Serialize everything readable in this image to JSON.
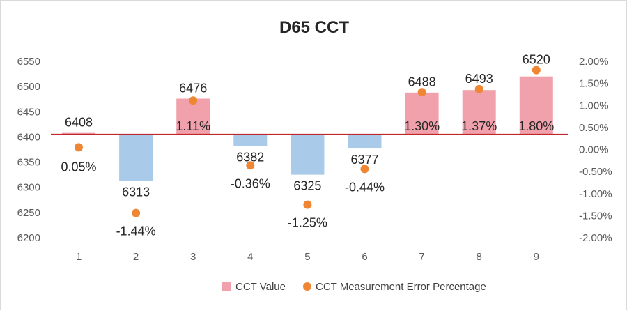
{
  "chart_data": {
    "type": "bar",
    "title": "D65 CCT",
    "categories": [
      "1",
      "2",
      "3",
      "4",
      "5",
      "6",
      "7",
      "8",
      "9"
    ],
    "baseline": 6405,
    "series": [
      {
        "name": "CCT Value",
        "kind": "bar",
        "axis": "left",
        "values": [
          6408,
          6313,
          6476,
          6382,
          6325,
          6377,
          6488,
          6493,
          6520
        ],
        "labels": [
          "6408",
          "6313",
          "6476",
          "6382",
          "6325",
          "6377",
          "6488",
          "6493",
          "6520"
        ]
      },
      {
        "name": "CCT Measurement Error Percentage",
        "kind": "scatter",
        "axis": "right",
        "values": [
          0.05,
          -1.44,
          1.11,
          -0.36,
          -1.25,
          -0.44,
          1.3,
          1.37,
          1.8
        ],
        "labels": [
          "0.05%",
          "-1.44%",
          "1.11%",
          "-0.36%",
          "-1.25%",
          "-0.44%",
          "1.30%",
          "1.37%",
          "1.80%"
        ]
      }
    ],
    "y_left": {
      "ylim": [
        6200,
        6550
      ],
      "ticks": [
        "6200",
        "6250",
        "6300",
        "6350",
        "6400",
        "6450",
        "6500",
        "6550"
      ]
    },
    "y_right": {
      "ylim": [
        -2.0,
        2.0
      ],
      "ticks": [
        "-2.00%",
        "-1.50%",
        "-1.00%",
        "-0.50%",
        "0.00%",
        "0.50%",
        "1.00%",
        "1.50%",
        "2.00%"
      ]
    },
    "grid": false,
    "legend_position": "bottom",
    "colors": {
      "bar_positive": "#f0a1ab",
      "bar_negative": "#a9cbe9",
      "marker": "#ef8634",
      "baseline": "#c0272d"
    }
  }
}
